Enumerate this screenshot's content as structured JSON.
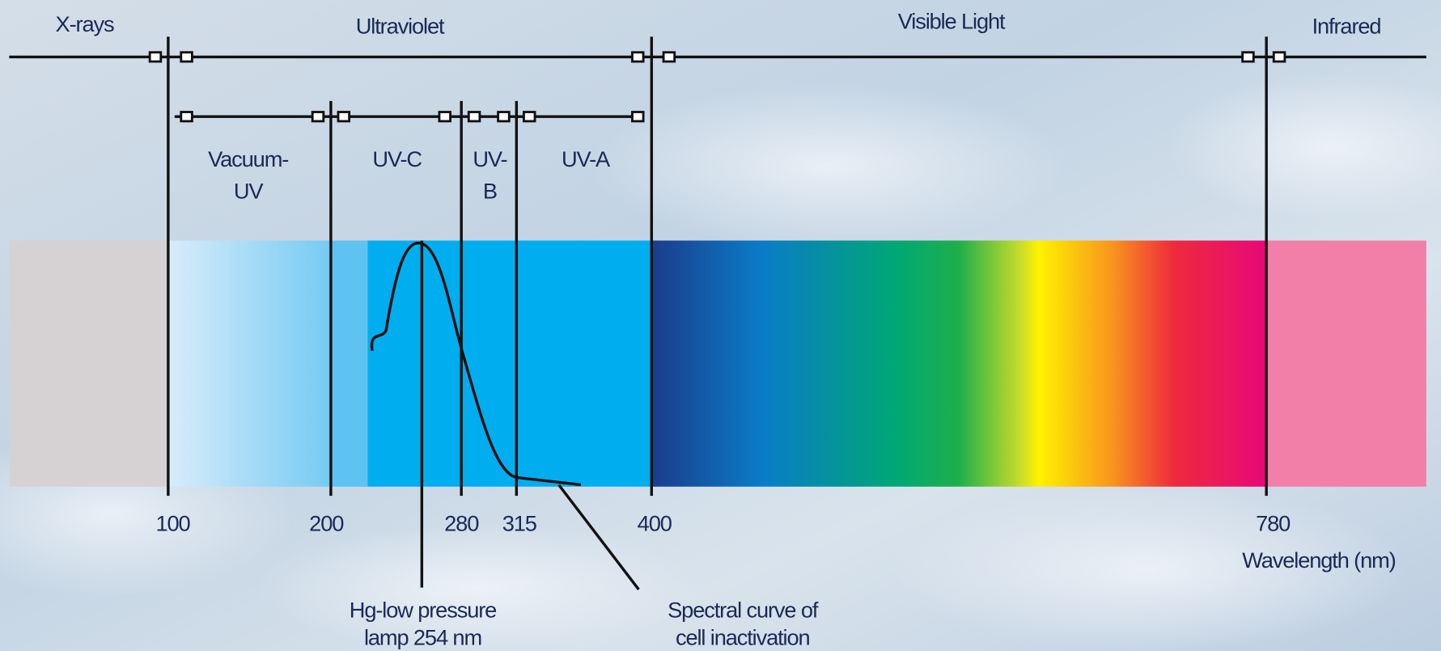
{
  "regions": [
    "X-rays",
    "Ultraviolet",
    "Visible Light",
    "Infrared"
  ],
  "uv_bands": [
    [
      "Vacuum-",
      "UV"
    ],
    [
      "UV-C"
    ],
    [
      "UV-",
      "B"
    ],
    [
      "UV-A"
    ]
  ],
  "wavelength_labels": [
    "100",
    "200",
    "280",
    "315",
    "400",
    "780"
  ],
  "axis_label": "Wavelength (nm)",
  "annotations": [
    [
      "Hg-low pressure",
      "lamp 254 nm"
    ],
    [
      "Spectral curve of",
      "cell inactivation"
    ]
  ]
}
